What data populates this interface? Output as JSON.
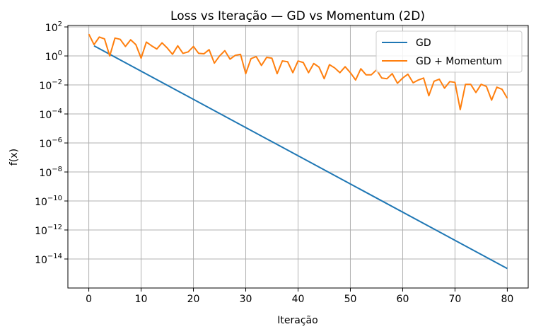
{
  "chart_data": {
    "type": "line",
    "title": "Loss vs Iteração — GD vs Momentum (2D)",
    "xlabel": "Iteração",
    "ylabel": "f(x)",
    "yscale": "log",
    "xlim": [
      -4,
      84
    ],
    "ylim_exp": [
      -16,
      2.1
    ],
    "xticks": [
      0,
      10,
      20,
      30,
      40,
      50,
      60,
      70,
      80
    ],
    "xtick_labels": [
      "0",
      "10",
      "20",
      "30",
      "40",
      "50",
      "60",
      "70",
      "80"
    ],
    "yticks_exp": [
      2,
      0,
      -2,
      -4,
      -6,
      -8,
      -10,
      -12,
      -14
    ],
    "ytick_labels": [
      {
        "base": "10",
        "exp": "2"
      },
      {
        "base": "10",
        "exp": "0"
      },
      {
        "base": "10",
        "exp": "−2"
      },
      {
        "base": "10",
        "exp": "−4"
      },
      {
        "base": "10",
        "exp": "−6"
      },
      {
        "base": "10",
        "exp": "−8"
      },
      {
        "base": "10",
        "exp": "−10"
      },
      {
        "base": "10",
        "exp": "−12"
      },
      {
        "base": "10",
        "exp": "−14"
      }
    ],
    "grid": true,
    "legend_position": "top-right",
    "series": [
      {
        "name": "GD",
        "color": "#1f77b4",
        "x": [
          1,
          80
        ],
        "y": [
          5.0,
          2.2e-15
        ]
      },
      {
        "name": "GD + Momentum",
        "color": "#ff7f0e",
        "x": [
          0,
          1,
          2,
          3,
          4,
          5,
          6,
          7,
          8,
          9,
          10,
          11,
          12,
          13,
          14,
          15,
          16,
          17,
          18,
          19,
          20,
          21,
          22,
          23,
          24,
          25,
          26,
          27,
          28,
          29,
          30,
          31,
          32,
          33,
          34,
          35,
          36,
          37,
          38,
          39,
          40,
          41,
          42,
          43,
          44,
          45,
          46,
          47,
          48,
          49,
          50,
          51,
          52,
          53,
          54,
          55,
          56,
          57,
          58,
          59,
          60,
          61,
          62,
          63,
          64,
          65,
          66,
          67,
          68,
          69,
          70,
          71,
          72,
          73,
          74,
          75,
          76,
          77,
          78,
          79,
          80
        ],
        "y": [
          32,
          6,
          20,
          15,
          1.0,
          17,
          14,
          4.5,
          13,
          6,
          0.7,
          9,
          5,
          3,
          8,
          3.5,
          1.3,
          5,
          1.5,
          1.9,
          4.5,
          1.5,
          1.4,
          2.7,
          0.32,
          1.0,
          2.3,
          0.6,
          1.1,
          1.3,
          0.06,
          0.65,
          0.9,
          0.22,
          0.8,
          0.7,
          0.06,
          0.45,
          0.4,
          0.07,
          0.45,
          0.35,
          0.07,
          0.3,
          0.17,
          0.027,
          0.25,
          0.15,
          0.07,
          0.18,
          0.07,
          0.022,
          0.13,
          0.05,
          0.05,
          0.11,
          0.03,
          0.027,
          0.06,
          0.013,
          0.03,
          0.055,
          0.014,
          0.022,
          0.03,
          0.0018,
          0.018,
          0.025,
          0.006,
          0.017,
          0.015,
          0.0002,
          0.011,
          0.011,
          0.003,
          0.011,
          0.008,
          0.0009,
          0.007,
          0.005,
          0.0012
        ]
      }
    ]
  }
}
